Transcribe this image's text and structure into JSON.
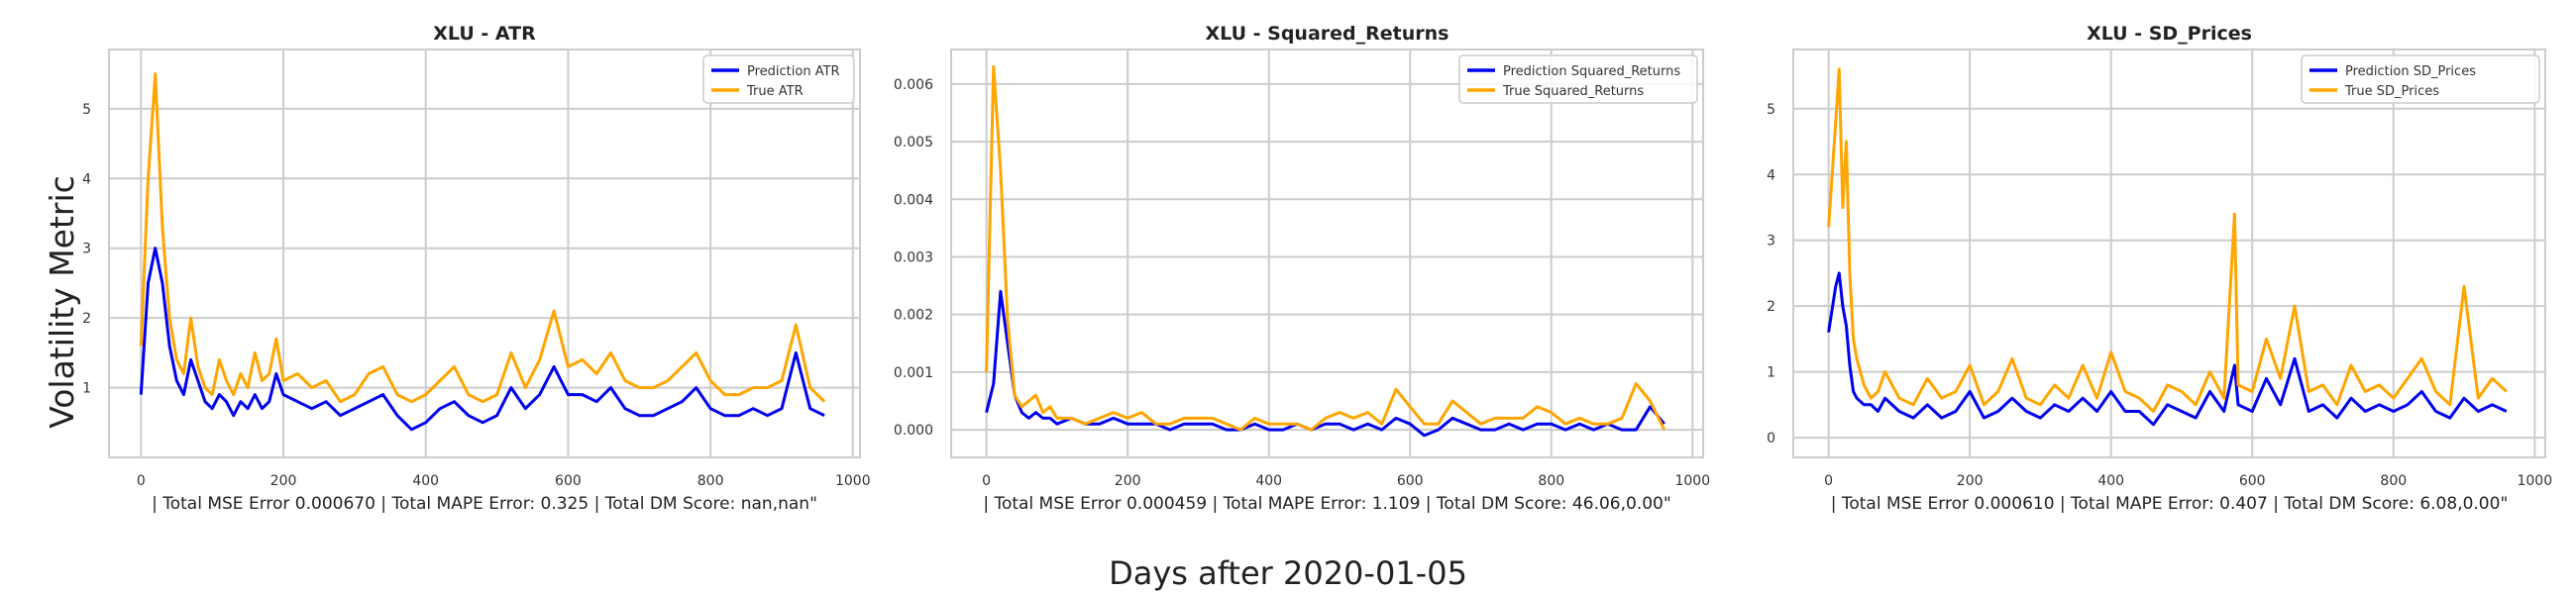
{
  "figure": {
    "ylabel": "Volatility Metric",
    "xlabel": "Days after 2020-01-05"
  },
  "colors": {
    "prediction": "#0000ee",
    "true": "#ffa500",
    "grid": "#cccccc",
    "axes": "#cccccc"
  },
  "chart_data": [
    {
      "type": "line",
      "title": "XLU - ATR",
      "xlabel": "| Total MSE Error 0.000670 | Total MAPE Error: 0.325 | Total DM Score: nan,nan\"",
      "xlim": [
        -45,
        1010
      ],
      "ylim": [
        0.0,
        5.85
      ],
      "xticks": [
        0,
        200,
        400,
        600,
        800,
        1000
      ],
      "yticks": [
        1,
        2,
        3,
        4,
        5
      ],
      "ytick_labels": [
        "1",
        "2",
        "3",
        "4",
        "5"
      ],
      "legend": "top-right",
      "x": [
        0,
        10,
        20,
        30,
        40,
        50,
        60,
        70,
        80,
        90,
        100,
        110,
        120,
        130,
        140,
        150,
        160,
        170,
        180,
        190,
        200,
        220,
        240,
        260,
        280,
        300,
        320,
        340,
        360,
        380,
        400,
        420,
        440,
        460,
        480,
        500,
        520,
        540,
        560,
        580,
        600,
        620,
        640,
        660,
        680,
        700,
        720,
        740,
        760,
        780,
        800,
        820,
        840,
        860,
        880,
        900,
        920,
        940,
        960
      ],
      "series": [
        {
          "name": "Prediction ATR",
          "color_key": "prediction",
          "values": [
            0.9,
            2.5,
            3.0,
            2.5,
            1.6,
            1.1,
            0.9,
            1.4,
            1.1,
            0.8,
            0.7,
            0.9,
            0.8,
            0.6,
            0.8,
            0.7,
            0.9,
            0.7,
            0.8,
            1.2,
            0.9,
            0.8,
            0.7,
            0.8,
            0.6,
            0.7,
            0.8,
            0.9,
            0.6,
            0.4,
            0.5,
            0.7,
            0.8,
            0.6,
            0.5,
            0.6,
            1.0,
            0.7,
            0.9,
            1.3,
            0.9,
            0.9,
            0.8,
            1.0,
            0.7,
            0.6,
            0.6,
            0.7,
            0.8,
            1.0,
            0.7,
            0.6,
            0.6,
            0.7,
            0.6,
            0.7,
            1.5,
            0.7,
            0.6
          ]
        },
        {
          "name": "True ATR",
          "color_key": "true",
          "values": [
            1.6,
            4.0,
            5.5,
            3.3,
            2.0,
            1.4,
            1.2,
            2.0,
            1.3,
            1.0,
            0.9,
            1.4,
            1.1,
            0.9,
            1.2,
            1.0,
            1.5,
            1.1,
            1.2,
            1.7,
            1.1,
            1.2,
            1.0,
            1.1,
            0.8,
            0.9,
            1.2,
            1.3,
            0.9,
            0.8,
            0.9,
            1.1,
            1.3,
            0.9,
            0.8,
            0.9,
            1.5,
            1.0,
            1.4,
            2.1,
            1.3,
            1.4,
            1.2,
            1.5,
            1.1,
            1.0,
            1.0,
            1.1,
            1.3,
            1.5,
            1.1,
            0.9,
            0.9,
            1.0,
            1.0,
            1.1,
            1.9,
            1.0,
            0.8
          ]
        }
      ]
    },
    {
      "type": "line",
      "title": "XLU - Squared_Returns",
      "xlabel": "| Total MSE Error 0.000459 | Total MAPE Error: 1.109 | Total DM Score: 46.06,0.00\"",
      "xlim": [
        -50,
        1015
      ],
      "ylim": [
        -0.00048,
        0.0066
      ],
      "xticks": [
        0,
        200,
        400,
        600,
        800,
        1000
      ],
      "yticks": [
        0.0,
        0.001,
        0.002,
        0.003,
        0.004,
        0.005,
        0.006
      ],
      "ytick_labels": [
        "0.000",
        "0.001",
        "0.002",
        "0.003",
        "0.004",
        "0.005",
        "0.006"
      ],
      "legend": "top-right",
      "x": [
        0,
        10,
        20,
        30,
        40,
        50,
        60,
        70,
        80,
        90,
        100,
        120,
        140,
        160,
        180,
        200,
        220,
        240,
        260,
        280,
        300,
        320,
        340,
        360,
        380,
        400,
        420,
        440,
        460,
        480,
        500,
        520,
        540,
        560,
        580,
        600,
        620,
        640,
        660,
        680,
        700,
        720,
        740,
        760,
        780,
        800,
        820,
        840,
        860,
        880,
        900,
        920,
        940,
        960
      ],
      "series": [
        {
          "name": "Prediction Squared_Returns",
          "color_key": "prediction",
          "values": [
            0.0003,
            0.0008,
            0.0024,
            0.0015,
            0.0006,
            0.0003,
            0.0002,
            0.0003,
            0.0002,
            0.0002,
            0.0001,
            0.0002,
            0.0001,
            0.0001,
            0.0002,
            0.0001,
            0.0001,
            0.0001,
            0.0,
            0.0001,
            0.0001,
            0.0001,
            0.0,
            0.0,
            0.0001,
            0.0,
            0.0,
            0.0001,
            0.0,
            0.0001,
            0.0001,
            0.0,
            0.0001,
            0.0,
            0.0002,
            0.0001,
            -0.0001,
            0.0,
            0.0002,
            0.0001,
            0.0,
            0.0,
            0.0001,
            0.0,
            0.0001,
            0.0001,
            0.0,
            0.0001,
            0.0,
            0.0001,
            0.0,
            0.0,
            0.0004,
            0.0001
          ]
        },
        {
          "name": "True Squared_Returns",
          "color_key": "true",
          "values": [
            0.001,
            0.0063,
            0.0045,
            0.0019,
            0.0006,
            0.0004,
            0.0005,
            0.0006,
            0.0003,
            0.0004,
            0.0002,
            0.0002,
            0.0001,
            0.0002,
            0.0003,
            0.0002,
            0.0003,
            0.0001,
            0.0001,
            0.0002,
            0.0002,
            0.0002,
            0.0001,
            0.0,
            0.0002,
            0.0001,
            0.0001,
            0.0001,
            0.0,
            0.0002,
            0.0003,
            0.0002,
            0.0003,
            0.0001,
            0.0007,
            0.0004,
            0.0001,
            0.0001,
            0.0005,
            0.0003,
            0.0001,
            0.0002,
            0.0002,
            0.0002,
            0.0004,
            0.0003,
            0.0001,
            0.0002,
            0.0001,
            0.0001,
            0.0002,
            0.0008,
            0.0005,
            0.0
          ]
        }
      ]
    },
    {
      "type": "line",
      "title": "XLU - SD_Prices",
      "xlabel": "| Total MSE Error 0.000610 | Total MAPE Error: 0.407 | Total DM Score: 6.08,0.00\"",
      "xlim": [
        -50,
        1015
      ],
      "ylim": [
        -0.3,
        5.9
      ],
      "xticks": [
        0,
        200,
        400,
        600,
        800,
        1000
      ],
      "yticks": [
        0,
        1,
        2,
        3,
        4,
        5
      ],
      "ytick_labels": [
        "0",
        "1",
        "2",
        "3",
        "4",
        "5"
      ],
      "legend": "top-right",
      "x": [
        0,
        10,
        15,
        20,
        25,
        30,
        35,
        40,
        50,
        60,
        70,
        80,
        100,
        120,
        140,
        160,
        180,
        200,
        220,
        240,
        260,
        280,
        300,
        320,
        340,
        360,
        380,
        400,
        420,
        440,
        460,
        480,
        500,
        520,
        540,
        560,
        575,
        580,
        600,
        620,
        640,
        660,
        680,
        700,
        720,
        740,
        760,
        780,
        800,
        820,
        840,
        860,
        880,
        900,
        920,
        940,
        960
      ],
      "series": [
        {
          "name": "Prediction SD_Prices",
          "color_key": "prediction",
          "values": [
            1.6,
            2.3,
            2.5,
            2.0,
            1.7,
            1.1,
            0.7,
            0.6,
            0.5,
            0.5,
            0.4,
            0.6,
            0.4,
            0.3,
            0.5,
            0.3,
            0.4,
            0.7,
            0.3,
            0.4,
            0.6,
            0.4,
            0.3,
            0.5,
            0.4,
            0.6,
            0.4,
            0.7,
            0.4,
            0.4,
            0.2,
            0.5,
            0.4,
            0.3,
            0.7,
            0.4,
            1.1,
            0.5,
            0.4,
            0.9,
            0.5,
            1.2,
            0.4,
            0.5,
            0.3,
            0.6,
            0.4,
            0.5,
            0.4,
            0.5,
            0.7,
            0.4,
            0.3,
            0.6,
            0.4,
            0.5,
            0.4
          ]
        },
        {
          "name": "True SD_Prices",
          "color_key": "true",
          "values": [
            3.2,
            4.8,
            5.6,
            3.5,
            4.5,
            2.5,
            1.5,
            1.2,
            0.8,
            0.6,
            0.7,
            1.0,
            0.6,
            0.5,
            0.9,
            0.6,
            0.7,
            1.1,
            0.5,
            0.7,
            1.2,
            0.6,
            0.5,
            0.8,
            0.6,
            1.1,
            0.6,
            1.3,
            0.7,
            0.6,
            0.4,
            0.8,
            0.7,
            0.5,
            1.0,
            0.6,
            3.4,
            0.8,
            0.7,
            1.5,
            0.9,
            2.0,
            0.7,
            0.8,
            0.5,
            1.1,
            0.7,
            0.8,
            0.6,
            0.9,
            1.2,
            0.7,
            0.5,
            2.3,
            0.6,
            0.9,
            0.7
          ]
        }
      ]
    }
  ]
}
